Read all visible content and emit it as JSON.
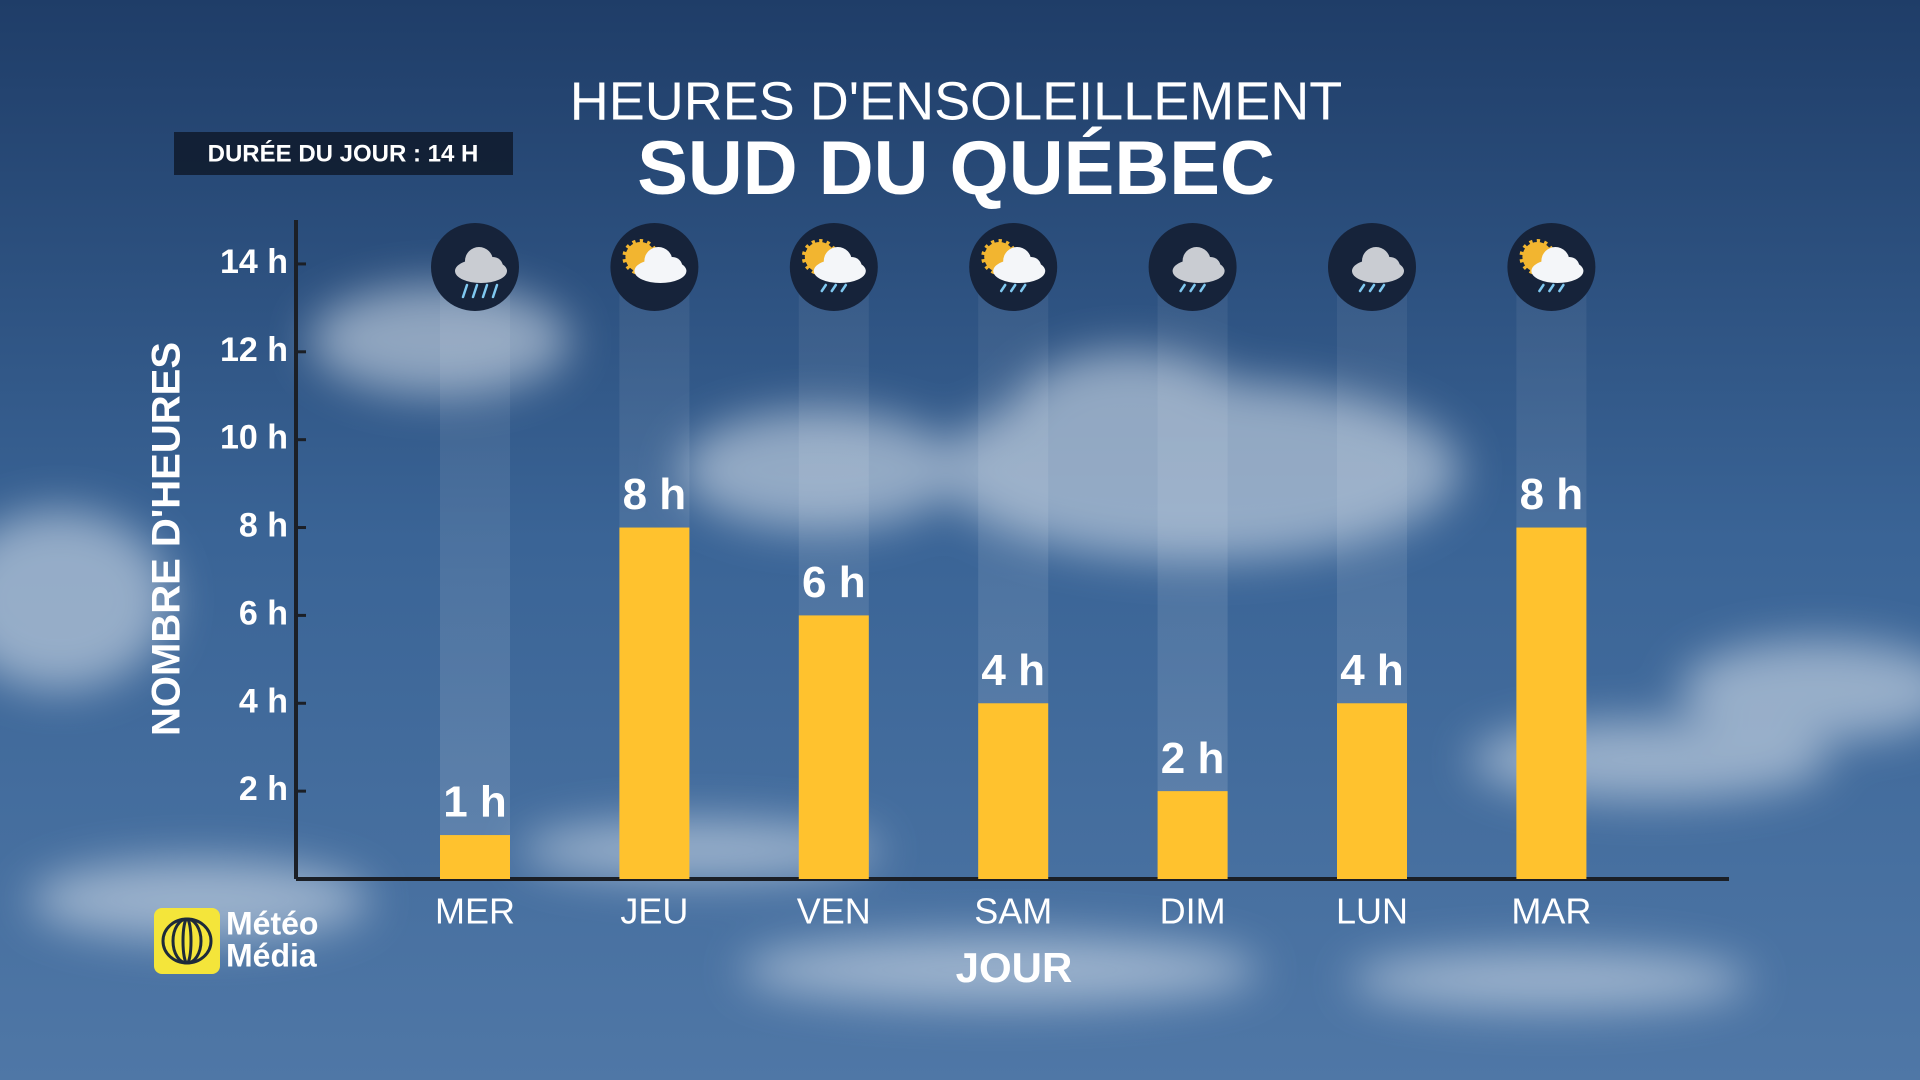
{
  "chart_data": {
    "type": "bar",
    "title": "HEURES D'ENSOLEILLEMENT",
    "subtitle": "SUD DU QUÉBEC",
    "badge": "DURÉE DU JOUR : 14 H",
    "ylabel": "NOMBRE D'HEURES",
    "xlabel": "JOUR",
    "brand": [
      "Météo",
      "Média"
    ],
    "categories": [
      "MER",
      "JEU",
      "VEN",
      "SAM",
      "DIM",
      "LUN",
      "MAR"
    ],
    "values": [
      1,
      8,
      6,
      4,
      2,
      4,
      8
    ],
    "value_labels": [
      "1 h",
      "8 h",
      "6 h",
      "4 h",
      "2 h",
      "4 h",
      "8 h"
    ],
    "color": "#ffc22e",
    "ylim": [
      0,
      15
    ],
    "yticks": [
      {
        "value": 2,
        "label": "2 h"
      },
      {
        "value": 4,
        "label": "4 h"
      },
      {
        "value": 6,
        "label": "6 h"
      },
      {
        "value": 8,
        "label": "8 h"
      },
      {
        "value": 10,
        "label": "10 h"
      },
      {
        "value": 12,
        "label": "12 h"
      },
      {
        "value": 14,
        "label": "14 h"
      }
    ]
  }
}
